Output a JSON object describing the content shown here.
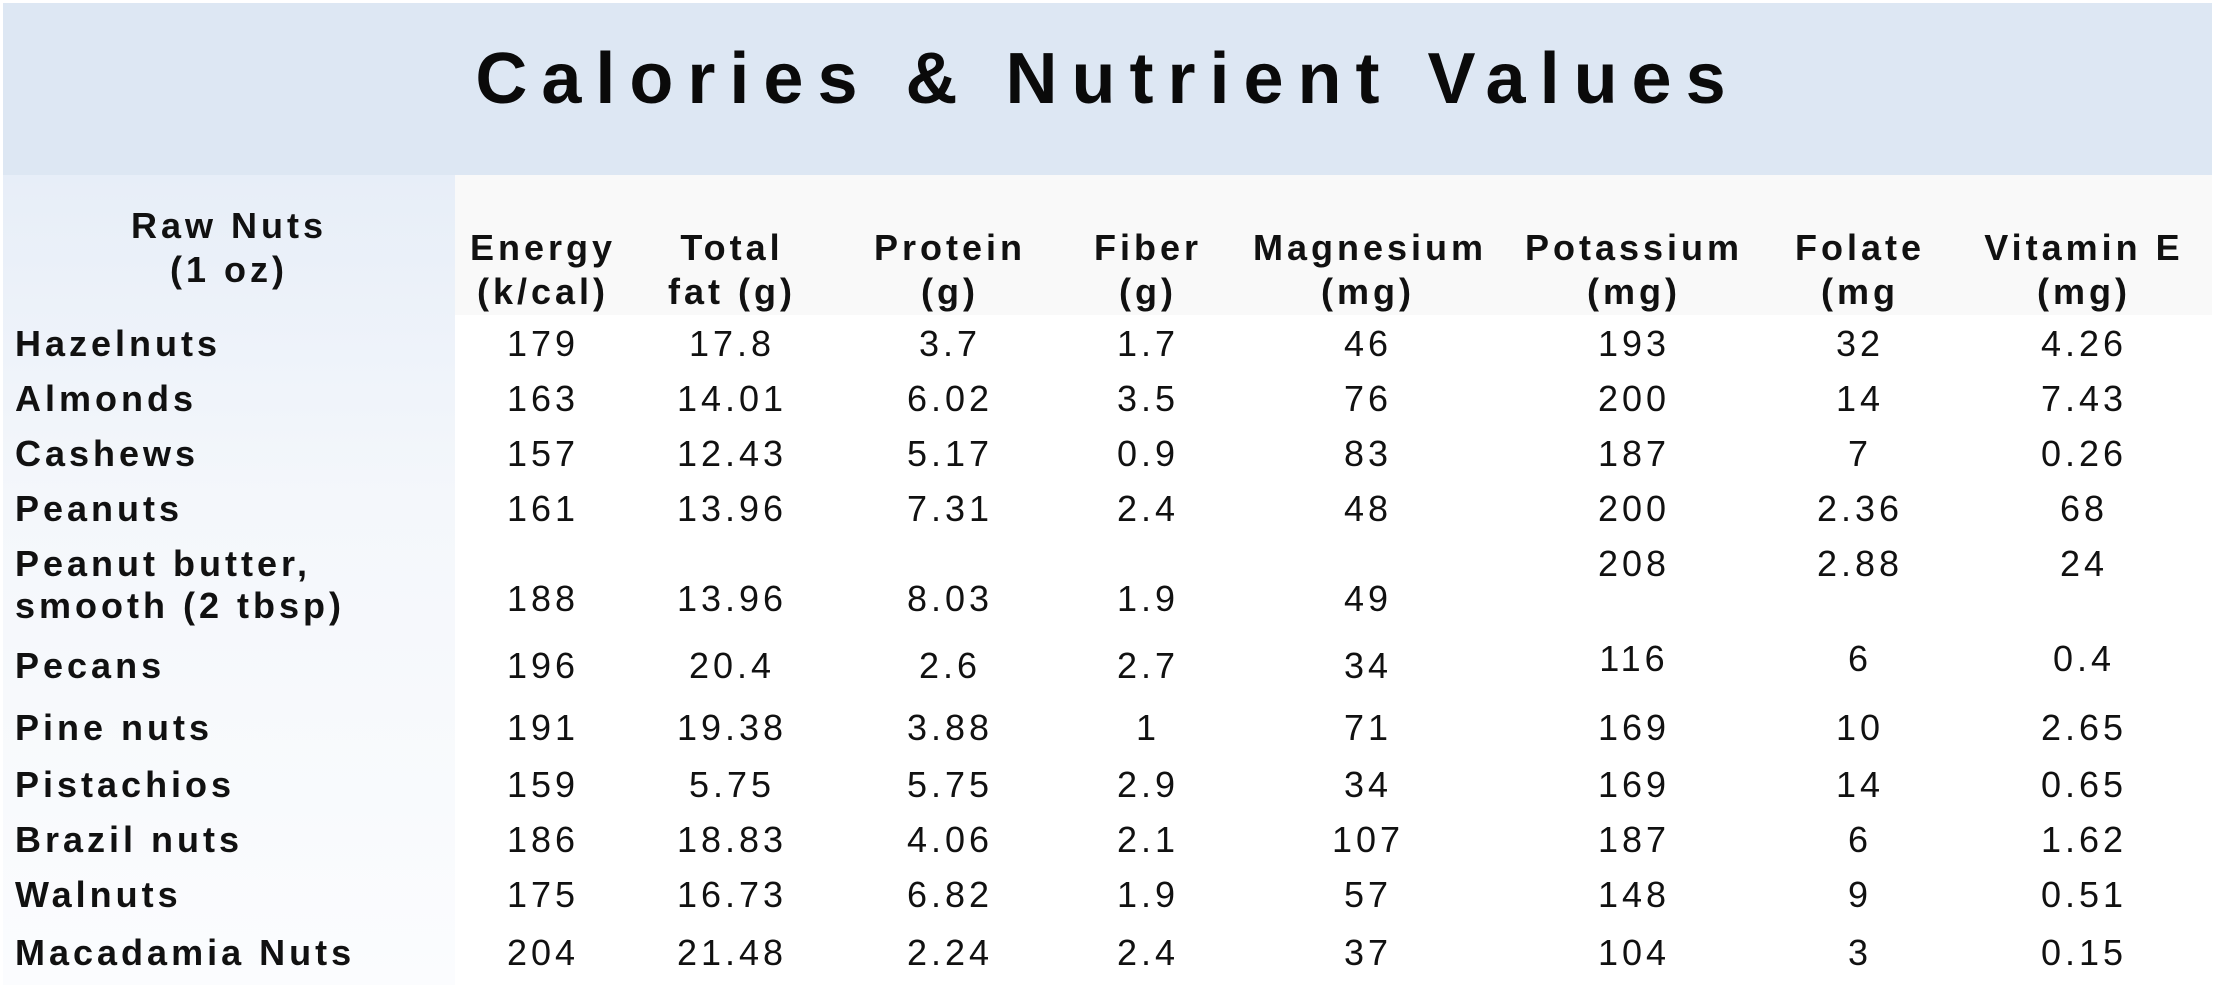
{
  "title": "Calories & Nutrient Values",
  "name_header": "Raw Nuts\n(1 oz)",
  "columns": [
    "Energy\n(k/cal)",
    "Total\nfat (g)",
    "Protein\n(g)",
    "Fiber\n(g)",
    "Magnesium\n(mg)",
    "Potassium\n(mg)",
    "Folate\n(mg",
    "Vitamin E\n(mg)"
  ],
  "rows": [
    {
      "name": "Hazelnuts",
      "values": [
        "179",
        "17.8",
        "3.7",
        "1.7",
        "46",
        "193",
        "32",
        "4.26"
      ]
    },
    {
      "name": "Almonds",
      "values": [
        "163",
        "14.01",
        "6.02",
        "3.5",
        "76",
        "200",
        "14",
        "7.43"
      ]
    },
    {
      "name": "Cashews",
      "values": [
        "157",
        "12.43",
        "5.17",
        "0.9",
        "83",
        "187",
        "7",
        "0.26"
      ]
    },
    {
      "name": "Peanuts",
      "values": [
        "161",
        "13.96",
        "7.31",
        "2.4",
        "48",
        "200",
        "2.36",
        "68"
      ]
    },
    {
      "name": "Peanut butter,\nsmooth (2 tbsp)",
      "values": [
        "188",
        "13.96",
        "8.03",
        "1.9",
        "49",
        "208",
        "2.88",
        "24"
      ]
    },
    {
      "name": "Pecans",
      "values": [
        "196",
        "20.4",
        "2.6",
        "2.7",
        "34",
        "116",
        "6",
        "0.4"
      ]
    },
    {
      "name": "Pine nuts",
      "values": [
        "191",
        "19.38",
        "3.88",
        "1",
        "71",
        "169",
        "10",
        "2.65"
      ]
    },
    {
      "name": "Pistachios",
      "values": [
        "159",
        "5.75",
        "5.75",
        "2.9",
        "34",
        "169",
        "14",
        "0.65"
      ]
    },
    {
      "name": "Brazil nuts",
      "values": [
        "186",
        "18.83",
        "4.06",
        "2.1",
        "107",
        "187",
        "6",
        "1.62"
      ]
    },
    {
      "name": "Walnuts",
      "values": [
        "175",
        "16.73",
        "6.82",
        "1.9",
        "57",
        "148",
        "9",
        "0.51"
      ]
    },
    {
      "name": "Macadamia Nuts",
      "values": [
        "204",
        "21.48",
        "2.24",
        "2.4",
        "37",
        "104",
        "3",
        "0.15"
      ]
    }
  ]
}
